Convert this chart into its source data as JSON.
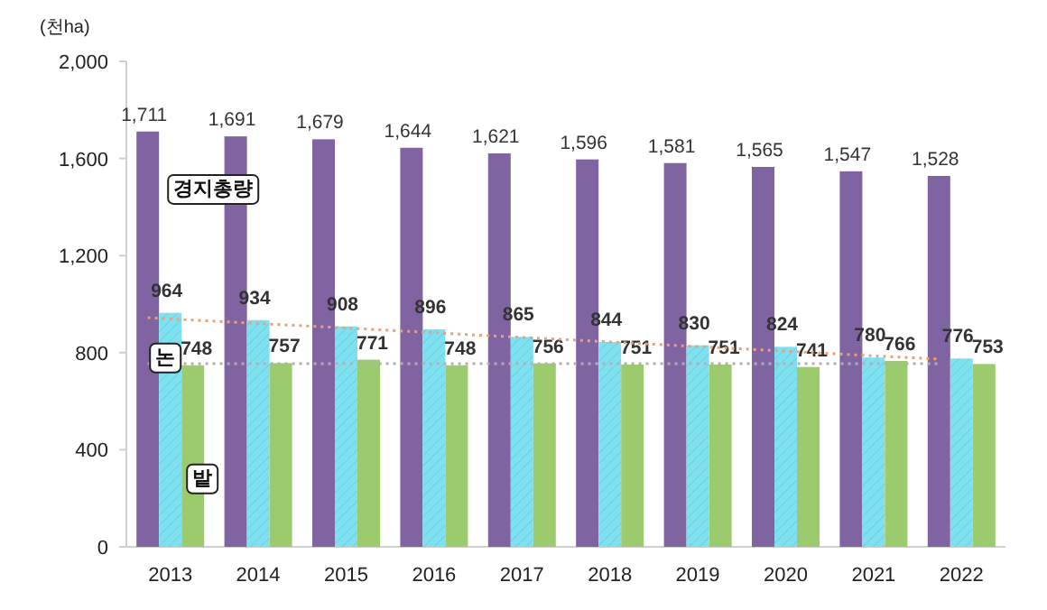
{
  "chart_data": {
    "type": "bar",
    "ylabel": "(천ha)",
    "categories": [
      "2013",
      "2014",
      "2015",
      "2016",
      "2017",
      "2018",
      "2019",
      "2020",
      "2021",
      "2022"
    ],
    "series": [
      {
        "name": "경지총량",
        "color": "#8064a2",
        "values": [
          1711,
          1691,
          1679,
          1644,
          1621,
          1596,
          1581,
          1565,
          1547,
          1528
        ],
        "value_labels": [
          "1,711",
          "1,691",
          "1,679",
          "1,644",
          "1,621",
          "1,596",
          "1,581",
          "1,565",
          "1,547",
          "1,528"
        ]
      },
      {
        "name": "논",
        "color": "#7fe0f0",
        "values": [
          964,
          934,
          908,
          896,
          865,
          844,
          830,
          824,
          780,
          776
        ],
        "value_labels": [
          "964",
          "934",
          "908",
          "896",
          "865",
          "844",
          "830",
          "824",
          "780",
          "776"
        ]
      },
      {
        "name": "밭",
        "color": "#9ccb6e",
        "values": [
          748,
          757,
          771,
          748,
          756,
          751,
          751,
          741,
          766,
          753
        ],
        "value_labels": [
          "748",
          "757",
          "771",
          "748",
          "756",
          "751",
          "751",
          "741",
          "766",
          "753"
        ]
      },
      {
        "type": "line",
        "color": "#f0a070",
        "line_style": "dotted",
        "values": [
          944,
          925,
          906,
          887,
          868,
          849,
          830,
          811,
          792,
          773
        ]
      },
      {
        "type": "line",
        "color": "#b0b0b0",
        "line_style": "dotted",
        "values": [
          755,
          755,
          755,
          755,
          755,
          755,
          755,
          755,
          755,
          755
        ]
      }
    ],
    "ylim": [
      0,
      2000
    ],
    "yticks": [
      0,
      400,
      800,
      {
        "value": 1200,
        "label": "1,200"
      },
      {
        "value": 1600,
        "label": "1,600"
      },
      {
        "value": 2000,
        "label": "2,000"
      }
    ]
  }
}
